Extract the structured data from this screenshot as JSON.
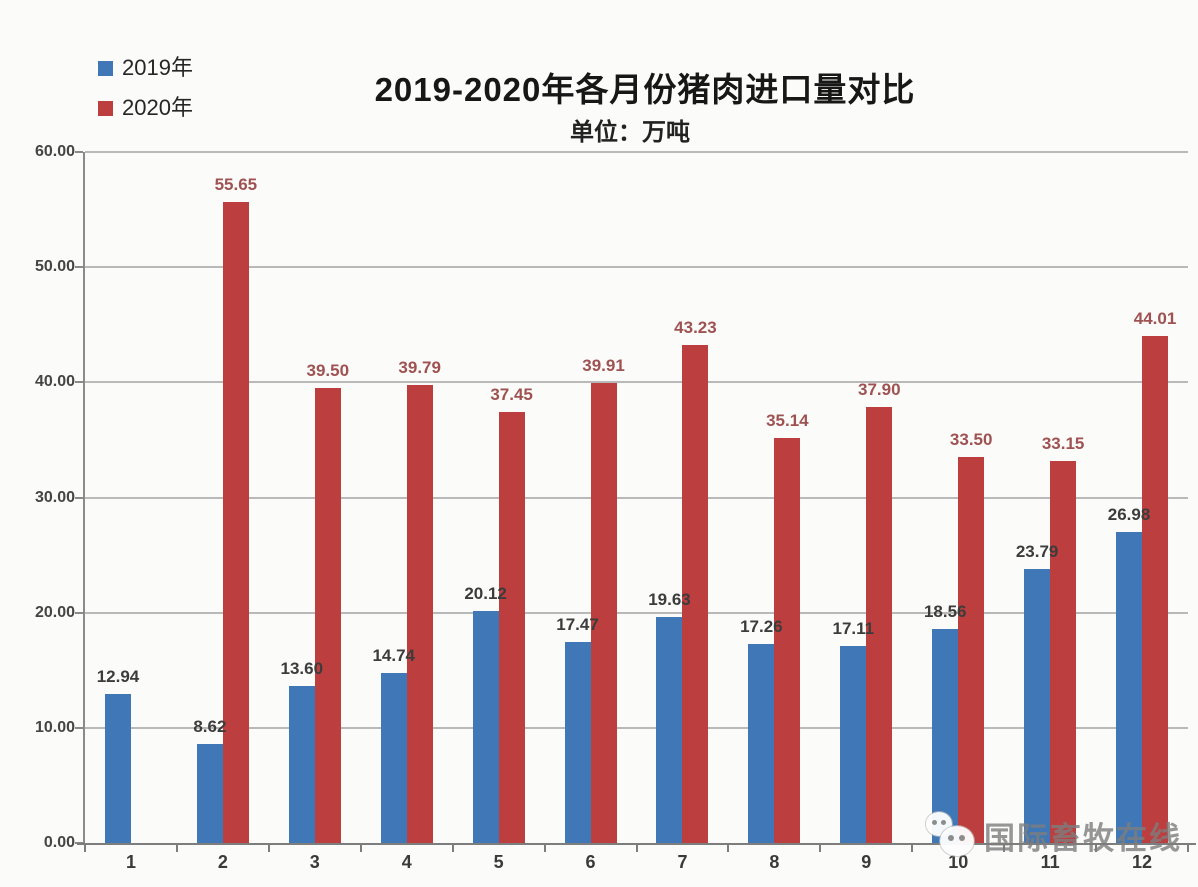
{
  "chart_data": {
    "type": "bar",
    "title": "2019-2020年各月份猪肉进口量对比",
    "subtitle": "单位：万吨",
    "unit": "万吨",
    "categories": [
      "1",
      "2",
      "3",
      "4",
      "5",
      "6",
      "7",
      "8",
      "9",
      "10",
      "11",
      "12"
    ],
    "series": [
      {
        "name": "2019年",
        "color": "#3F77B7",
        "label_color": "#3C3C3C",
        "values": [
          12.94,
          8.62,
          13.6,
          14.74,
          20.12,
          17.47,
          19.63,
          17.26,
          17.11,
          18.56,
          23.79,
          26.98
        ],
        "labels": [
          "12.94",
          "8.62",
          "13.60",
          "14.74",
          "20.12",
          "17.47",
          "19.63",
          "17.26",
          "17.11",
          "18.56",
          "23.79",
          "26.98"
        ]
      },
      {
        "name": "2020年",
        "color": "#BC3E3E",
        "label_color": "#9F5252",
        "values": [
          null,
          55.65,
          39.5,
          39.79,
          37.45,
          39.91,
          43.23,
          35.14,
          37.9,
          33.5,
          33.15,
          44.01
        ],
        "labels": [
          "",
          "55.65",
          "39.50",
          "39.79",
          "37.45",
          "39.91",
          "43.23",
          "35.14",
          "37.90",
          "33.50",
          "33.15",
          "44.01"
        ]
      }
    ],
    "ylim": [
      0,
      60
    ],
    "yticks": [
      0,
      10,
      20,
      30,
      40,
      50,
      60
    ],
    "ytick_labels": [
      "0.00",
      "10.00",
      "20.00",
      "30.00",
      "40.00",
      "50.00",
      "60.00"
    ],
    "grid": true,
    "legend_position": "top-left"
  },
  "watermark": {
    "text": "国际畜牧在线",
    "icon": "wechat-chat-bubbles"
  }
}
